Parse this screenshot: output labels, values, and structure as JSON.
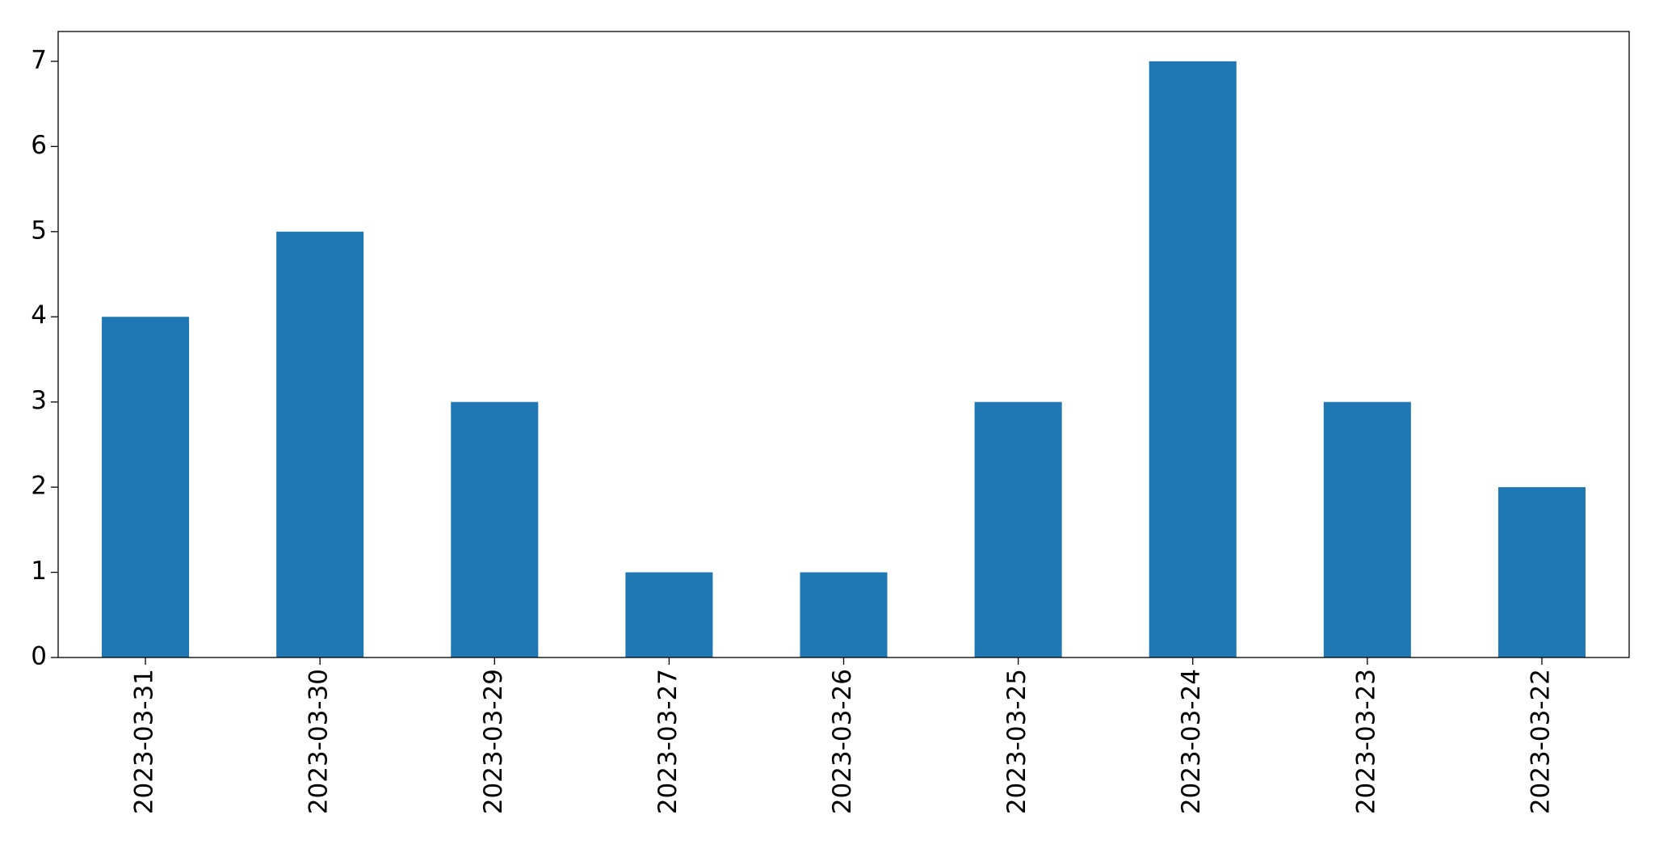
{
  "chart_data": {
    "type": "bar",
    "categories": [
      "2023-03-31",
      "2023-03-30",
      "2023-03-29",
      "2023-03-27",
      "2023-03-26",
      "2023-03-25",
      "2023-03-24",
      "2023-03-23",
      "2023-03-22"
    ],
    "values": [
      4,
      5,
      3,
      1,
      1,
      3,
      7,
      3,
      2
    ],
    "color": "#1f77b4",
    "ylim": [
      0,
      7.35
    ],
    "yticks": [
      0,
      1,
      2,
      3,
      4,
      5,
      6,
      7
    ],
    "grid": false
  }
}
